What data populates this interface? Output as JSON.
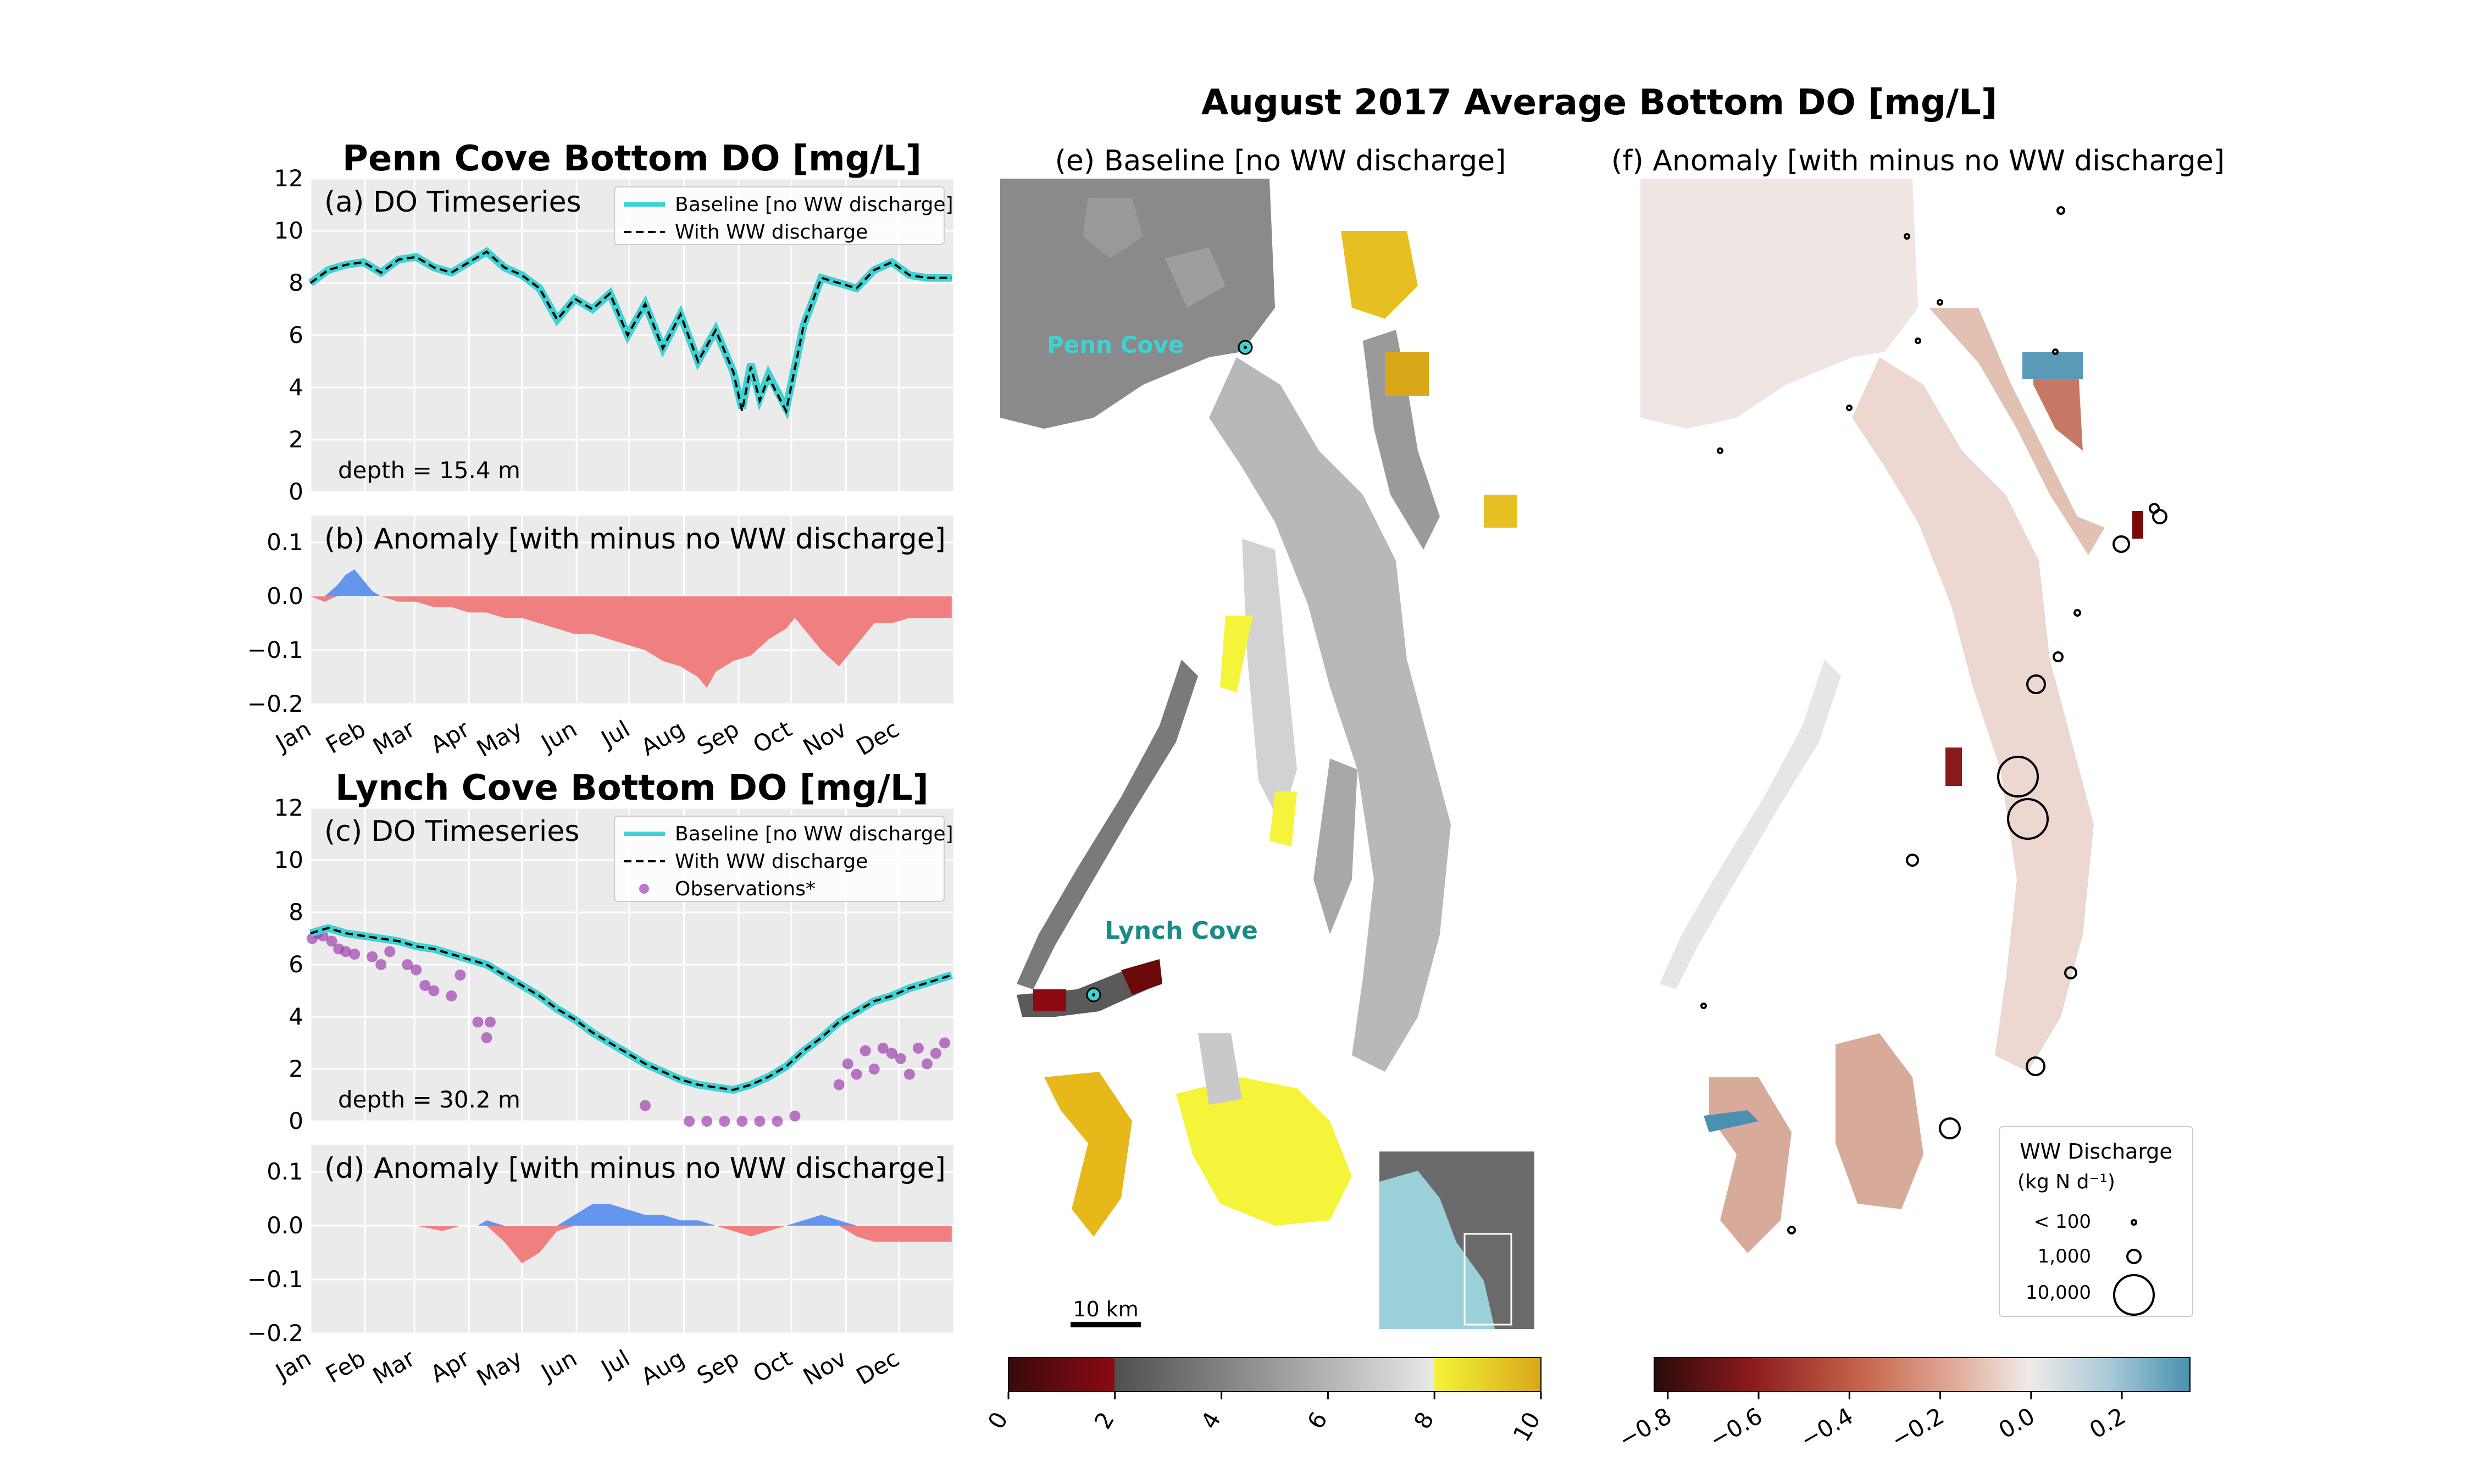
{
  "figure": {
    "suptitle": "August 2017 Average Bottom DO [mg/L]"
  },
  "chart_data": [
    {
      "id": "penn_ts",
      "type": "line",
      "title": "Penn Cove Bottom DO [mg/L]",
      "panel_label": "(a) DO Timeseries",
      "annotation": "depth = 15.4 m",
      "ylim": [
        0,
        12
      ],
      "yticks": [
        "0",
        "2",
        "4",
        "6",
        "8",
        "10",
        "12"
      ],
      "xticks": [
        "Jan",
        "Feb",
        "Mar",
        "Apr",
        "May",
        "Jun",
        "Jul",
        "Aug",
        "Sep",
        "Oct",
        "Nov",
        "Dec"
      ],
      "grid": true,
      "legend_position": "top-right",
      "x_day": [
        0,
        10,
        20,
        30,
        40,
        50,
        60,
        70,
        80,
        90,
        100,
        110,
        120,
        130,
        140,
        150,
        160,
        170,
        180,
        190,
        200,
        210,
        220,
        230,
        240,
        245,
        250,
        255,
        260,
        270,
        280,
        290,
        300,
        310,
        320,
        330,
        340,
        350,
        364
      ],
      "series": [
        {
          "name": "Baseline [no WW discharge]",
          "color": "#3fd2d2",
          "values": [
            8.0,
            8.5,
            8.7,
            8.8,
            8.4,
            8.9,
            9.0,
            8.6,
            8.4,
            8.8,
            9.2,
            8.6,
            8.3,
            7.8,
            6.6,
            7.4,
            7.0,
            7.6,
            6.0,
            7.2,
            5.5,
            6.8,
            5.0,
            6.2,
            4.6,
            3.2,
            4.9,
            3.6,
            4.5,
            3.2,
            6.4,
            8.2,
            8.0,
            7.8,
            8.5,
            8.8,
            8.3,
            8.2,
            8.2
          ]
        },
        {
          "name": "With WW discharge",
          "color": "#000000",
          "dashed": true,
          "values": [
            8.0,
            8.5,
            8.7,
            8.8,
            8.4,
            8.9,
            9.0,
            8.6,
            8.4,
            8.8,
            9.2,
            8.6,
            8.3,
            7.8,
            6.6,
            7.4,
            7.0,
            7.6,
            6.0,
            7.2,
            5.5,
            6.8,
            5.0,
            6.2,
            4.6,
            3.1,
            4.8,
            3.5,
            4.4,
            3.1,
            6.4,
            8.2,
            8.0,
            7.8,
            8.5,
            8.8,
            8.3,
            8.2,
            8.2
          ]
        }
      ]
    },
    {
      "id": "penn_anom",
      "type": "area",
      "panel_label": "(b) Anomaly [with minus no WW discharge]",
      "ylim": [
        -0.2,
        0.15
      ],
      "yticks": [
        "0.1",
        "0.0",
        "−0.1",
        "−0.2"
      ],
      "xticks": [
        "Jan",
        "Feb",
        "Mar",
        "Apr",
        "May",
        "Jun",
        "Jul",
        "Aug",
        "Sep",
        "Oct",
        "Nov",
        "Dec"
      ],
      "grid": true,
      "positive_color": "#6495ed",
      "negative_color": "#f08080",
      "x_day": [
        0,
        8,
        15,
        20,
        25,
        30,
        35,
        40,
        50,
        60,
        70,
        80,
        90,
        100,
        110,
        120,
        130,
        140,
        150,
        160,
        170,
        180,
        190,
        200,
        210,
        220,
        225,
        230,
        240,
        250,
        260,
        270,
        275,
        280,
        290,
        300,
        310,
        320,
        330,
        340,
        350,
        364
      ],
      "values": [
        0.0,
        -0.01,
        0.02,
        0.04,
        0.05,
        0.03,
        0.01,
        0.0,
        -0.01,
        -0.01,
        -0.02,
        -0.02,
        -0.03,
        -0.03,
        -0.04,
        -0.04,
        -0.05,
        -0.06,
        -0.07,
        -0.07,
        -0.08,
        -0.09,
        -0.1,
        -0.12,
        -0.13,
        -0.15,
        -0.17,
        -0.14,
        -0.12,
        -0.11,
        -0.08,
        -0.06,
        -0.04,
        -0.06,
        -0.1,
        -0.13,
        -0.09,
        -0.05,
        -0.05,
        -0.04,
        -0.04,
        -0.04
      ]
    },
    {
      "id": "lynch_ts",
      "type": "line",
      "title": "Lynch Cove Bottom DO [mg/L]",
      "panel_label": "(c) DO Timeseries",
      "annotation": "depth = 30.2 m",
      "ylim": [
        0,
        12
      ],
      "yticks": [
        "0",
        "2",
        "4",
        "6",
        "8",
        "10",
        "12"
      ],
      "xticks": [
        "Jan",
        "Feb",
        "Mar",
        "Apr",
        "May",
        "Jun",
        "Jul",
        "Aug",
        "Sep",
        "Oct",
        "Nov",
        "Dec"
      ],
      "grid": true,
      "legend_position": "top-right",
      "x_day": [
        0,
        10,
        20,
        30,
        40,
        50,
        60,
        70,
        80,
        90,
        100,
        110,
        120,
        130,
        140,
        150,
        160,
        170,
        180,
        190,
        200,
        210,
        220,
        230,
        240,
        250,
        260,
        270,
        280,
        290,
        300,
        310,
        320,
        330,
        340,
        350,
        364
      ],
      "series": [
        {
          "name": "Baseline [no WW discharge]",
          "color": "#3fd2d2",
          "values": [
            7.2,
            7.4,
            7.2,
            7.1,
            7.0,
            6.9,
            6.7,
            6.6,
            6.4,
            6.2,
            6.0,
            5.6,
            5.2,
            4.8,
            4.3,
            3.9,
            3.4,
            3.0,
            2.6,
            2.2,
            1.9,
            1.6,
            1.4,
            1.3,
            1.2,
            1.4,
            1.7,
            2.1,
            2.7,
            3.2,
            3.8,
            4.2,
            4.6,
            4.8,
            5.1,
            5.3,
            5.6
          ]
        },
        {
          "name": "With WW discharge",
          "color": "#000000",
          "dashed": true,
          "values": [
            7.2,
            7.4,
            7.2,
            7.1,
            7.0,
            6.9,
            6.7,
            6.6,
            6.4,
            6.2,
            6.0,
            5.6,
            5.2,
            4.8,
            4.3,
            3.9,
            3.4,
            3.0,
            2.6,
            2.2,
            1.9,
            1.6,
            1.4,
            1.3,
            1.2,
            1.4,
            1.7,
            2.1,
            2.7,
            3.2,
            3.8,
            4.2,
            4.6,
            4.8,
            5.1,
            5.3,
            5.6
          ]
        }
      ],
      "observations": {
        "name": "Observations*",
        "color": "#a040b0",
        "x_day": [
          1,
          4,
          7,
          12,
          16,
          20,
          25,
          35,
          40,
          45,
          55,
          60,
          65,
          70,
          80,
          85,
          95,
          100,
          102,
          190,
          215,
          225,
          235,
          245,
          255,
          265,
          275,
          300,
          305,
          310,
          315,
          320,
          325,
          330,
          335,
          340,
          345,
          350,
          355,
          360
        ],
        "values": [
          7.0,
          7.2,
          7.1,
          6.9,
          6.6,
          6.5,
          6.4,
          6.3,
          6.0,
          6.5,
          6.0,
          5.8,
          5.2,
          5.0,
          4.8,
          5.6,
          3.8,
          3.2,
          3.8,
          0.6,
          0.0,
          0.0,
          0.0,
          0.0,
          0.0,
          0.0,
          0.2,
          1.4,
          2.2,
          1.8,
          2.7,
          2.0,
          2.8,
          2.6,
          2.4,
          1.8,
          2.8,
          2.2,
          2.6,
          3.0
        ]
      }
    },
    {
      "id": "lynch_anom",
      "type": "area",
      "panel_label": "(d) Anomaly [with minus no WW discharge]",
      "ylim": [
        -0.2,
        0.15
      ],
      "yticks": [
        "0.1",
        "0.0",
        "−0.1",
        "−0.2"
      ],
      "xticks": [
        "Jan",
        "Feb",
        "Mar",
        "Apr",
        "May",
        "Jun",
        "Jul",
        "Aug",
        "Sep",
        "Oct",
        "Nov",
        "Dec"
      ],
      "grid": true,
      "positive_color": "#6495ed",
      "negative_color": "#f08080",
      "x_day": [
        0,
        30,
        60,
        75,
        85,
        95,
        100,
        110,
        120,
        130,
        140,
        150,
        160,
        170,
        180,
        190,
        200,
        210,
        220,
        230,
        240,
        250,
        260,
        270,
        280,
        290,
        300,
        310,
        320,
        330,
        340,
        350,
        364
      ],
      "values": [
        0.0,
        0.0,
        0.0,
        -0.01,
        0.0,
        0.0,
        0.01,
        -0.03,
        -0.07,
        -0.05,
        -0.01,
        0.02,
        0.04,
        0.04,
        0.03,
        0.02,
        0.02,
        0.01,
        0.01,
        0.0,
        -0.01,
        -0.02,
        -0.01,
        0.0,
        0.01,
        0.02,
        0.01,
        -0.02,
        -0.03,
        -0.03,
        -0.03,
        -0.03,
        -0.03
      ]
    },
    {
      "id": "map_baseline",
      "type": "heatmap",
      "title": "(e) Baseline [no WW discharge]",
      "labels": [
        "Penn Cove",
        "Lynch Cove"
      ],
      "scalebar": "10 km",
      "colorbar": {
        "ticks": [
          "0",
          "2",
          "4",
          "6",
          "8",
          "10"
        ],
        "range": [
          0,
          10
        ]
      }
    },
    {
      "id": "map_anomaly",
      "type": "heatmap",
      "title": "(f) Anomaly [with minus no WW discharge]",
      "colorbar": {
        "ticks": [
          "−0.8",
          "−0.6",
          "−0.4",
          "−0.2",
          "0.0",
          "0.2"
        ],
        "range": [
          -0.83,
          0.35
        ]
      },
      "legend": {
        "title": "WW Discharge",
        "units": "(kg N d⁻¹)",
        "entries": [
          "< 100",
          "1,000",
          "10,000"
        ]
      }
    }
  ]
}
